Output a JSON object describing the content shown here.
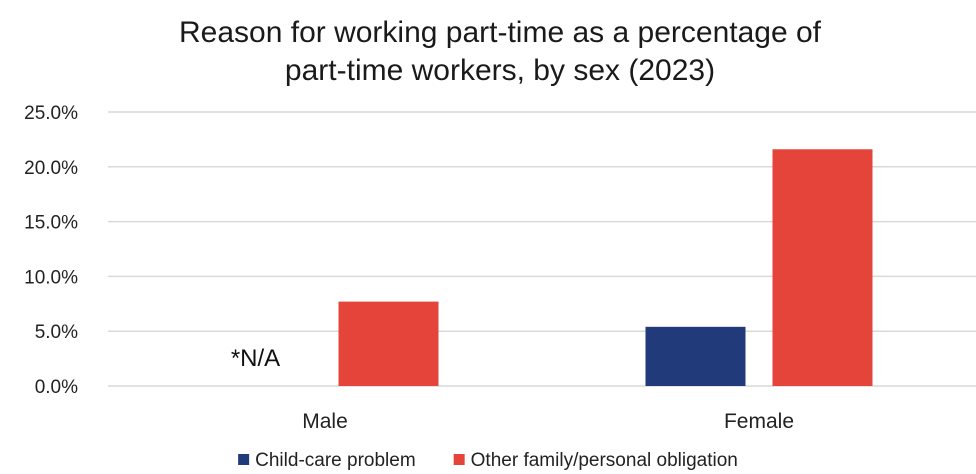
{
  "chart_data": {
    "type": "bar",
    "title": "Reason for working part-time as a percentage of part-time workers, by sex (2023)",
    "title_lines": [
      "Reason for working part-time as a percentage of",
      "part-time workers, by sex (2023)"
    ],
    "categories": [
      "Male",
      "Female"
    ],
    "series": [
      {
        "name": "Child-care problem",
        "values": [
          null,
          5.4
        ],
        "color": "#203a7a"
      },
      {
        "name": "Other family/personal obligation",
        "values": [
          7.7,
          21.6
        ],
        "color": "#e5443b"
      }
    ],
    "ylim": [
      0,
      25
    ],
    "yticks": [
      0,
      5,
      10,
      15,
      20,
      25
    ],
    "ytick_labels": [
      "0.0%",
      "5.0%",
      "10.0%",
      "15.0%",
      "20.0%",
      "25.0%"
    ],
    "annotations": [
      {
        "text": "*N/A",
        "category": "Male",
        "series": "Child-care problem"
      }
    ],
    "grid": true,
    "legend_position": "bottom"
  }
}
